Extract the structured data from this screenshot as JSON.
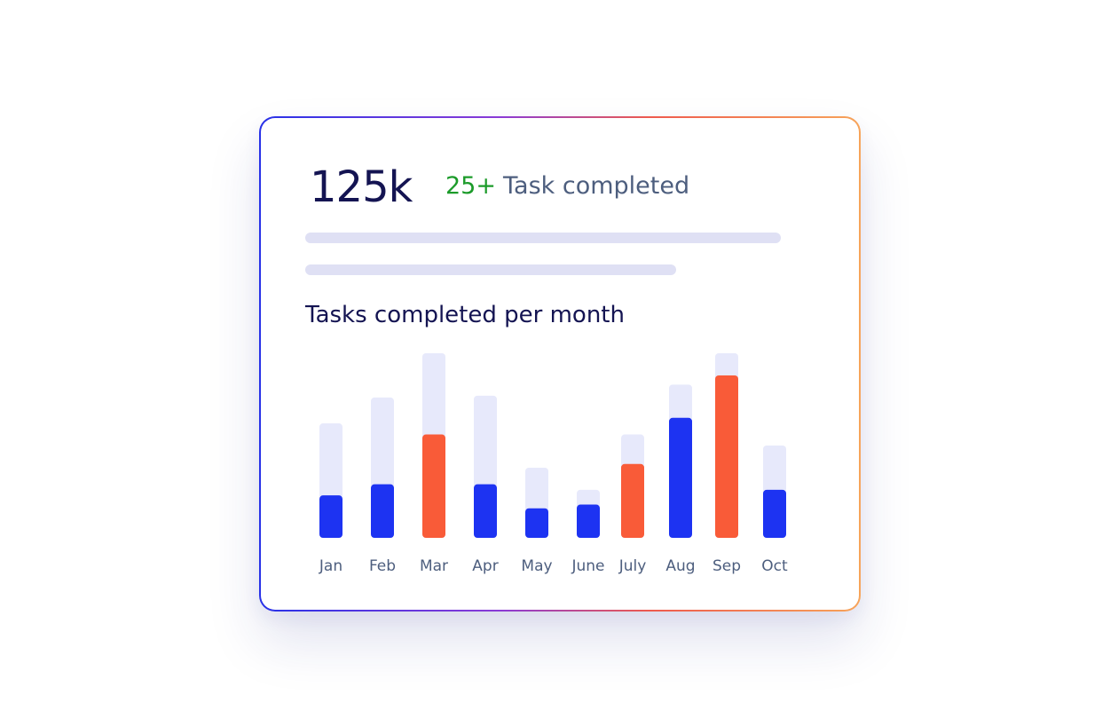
{
  "summary": {
    "value": "125k",
    "badge_count": "25+",
    "badge_label": "Task completed"
  },
  "colors": {
    "track": "#e7e9fb",
    "primary": "#1d33f2",
    "highlight": "#f95b38",
    "text_dark": "#141452",
    "text_muted": "#4d5e7e",
    "positive": "#1c9b2a"
  },
  "chart_data": {
    "type": "bar",
    "title": "Tasks completed per month",
    "xlabel": "",
    "ylabel": "",
    "ylim": [
      0,
      100
    ],
    "grid": false,
    "categories": [
      "Jan",
      "Feb",
      "Mar",
      "Apr",
      "May",
      "June",
      "July",
      "Aug",
      "Sep",
      "Oct"
    ],
    "series": [
      {
        "values": [
          62,
          76,
          100,
          77,
          38,
          26,
          56,
          83,
          100,
          50
        ]
      },
      {
        "values": [
          23,
          29,
          56,
          29,
          16,
          18,
          40,
          65,
          88,
          26
        ]
      }
    ],
    "highlighted_categories": [
      "Mar",
      "July",
      "Sep"
    ]
  }
}
